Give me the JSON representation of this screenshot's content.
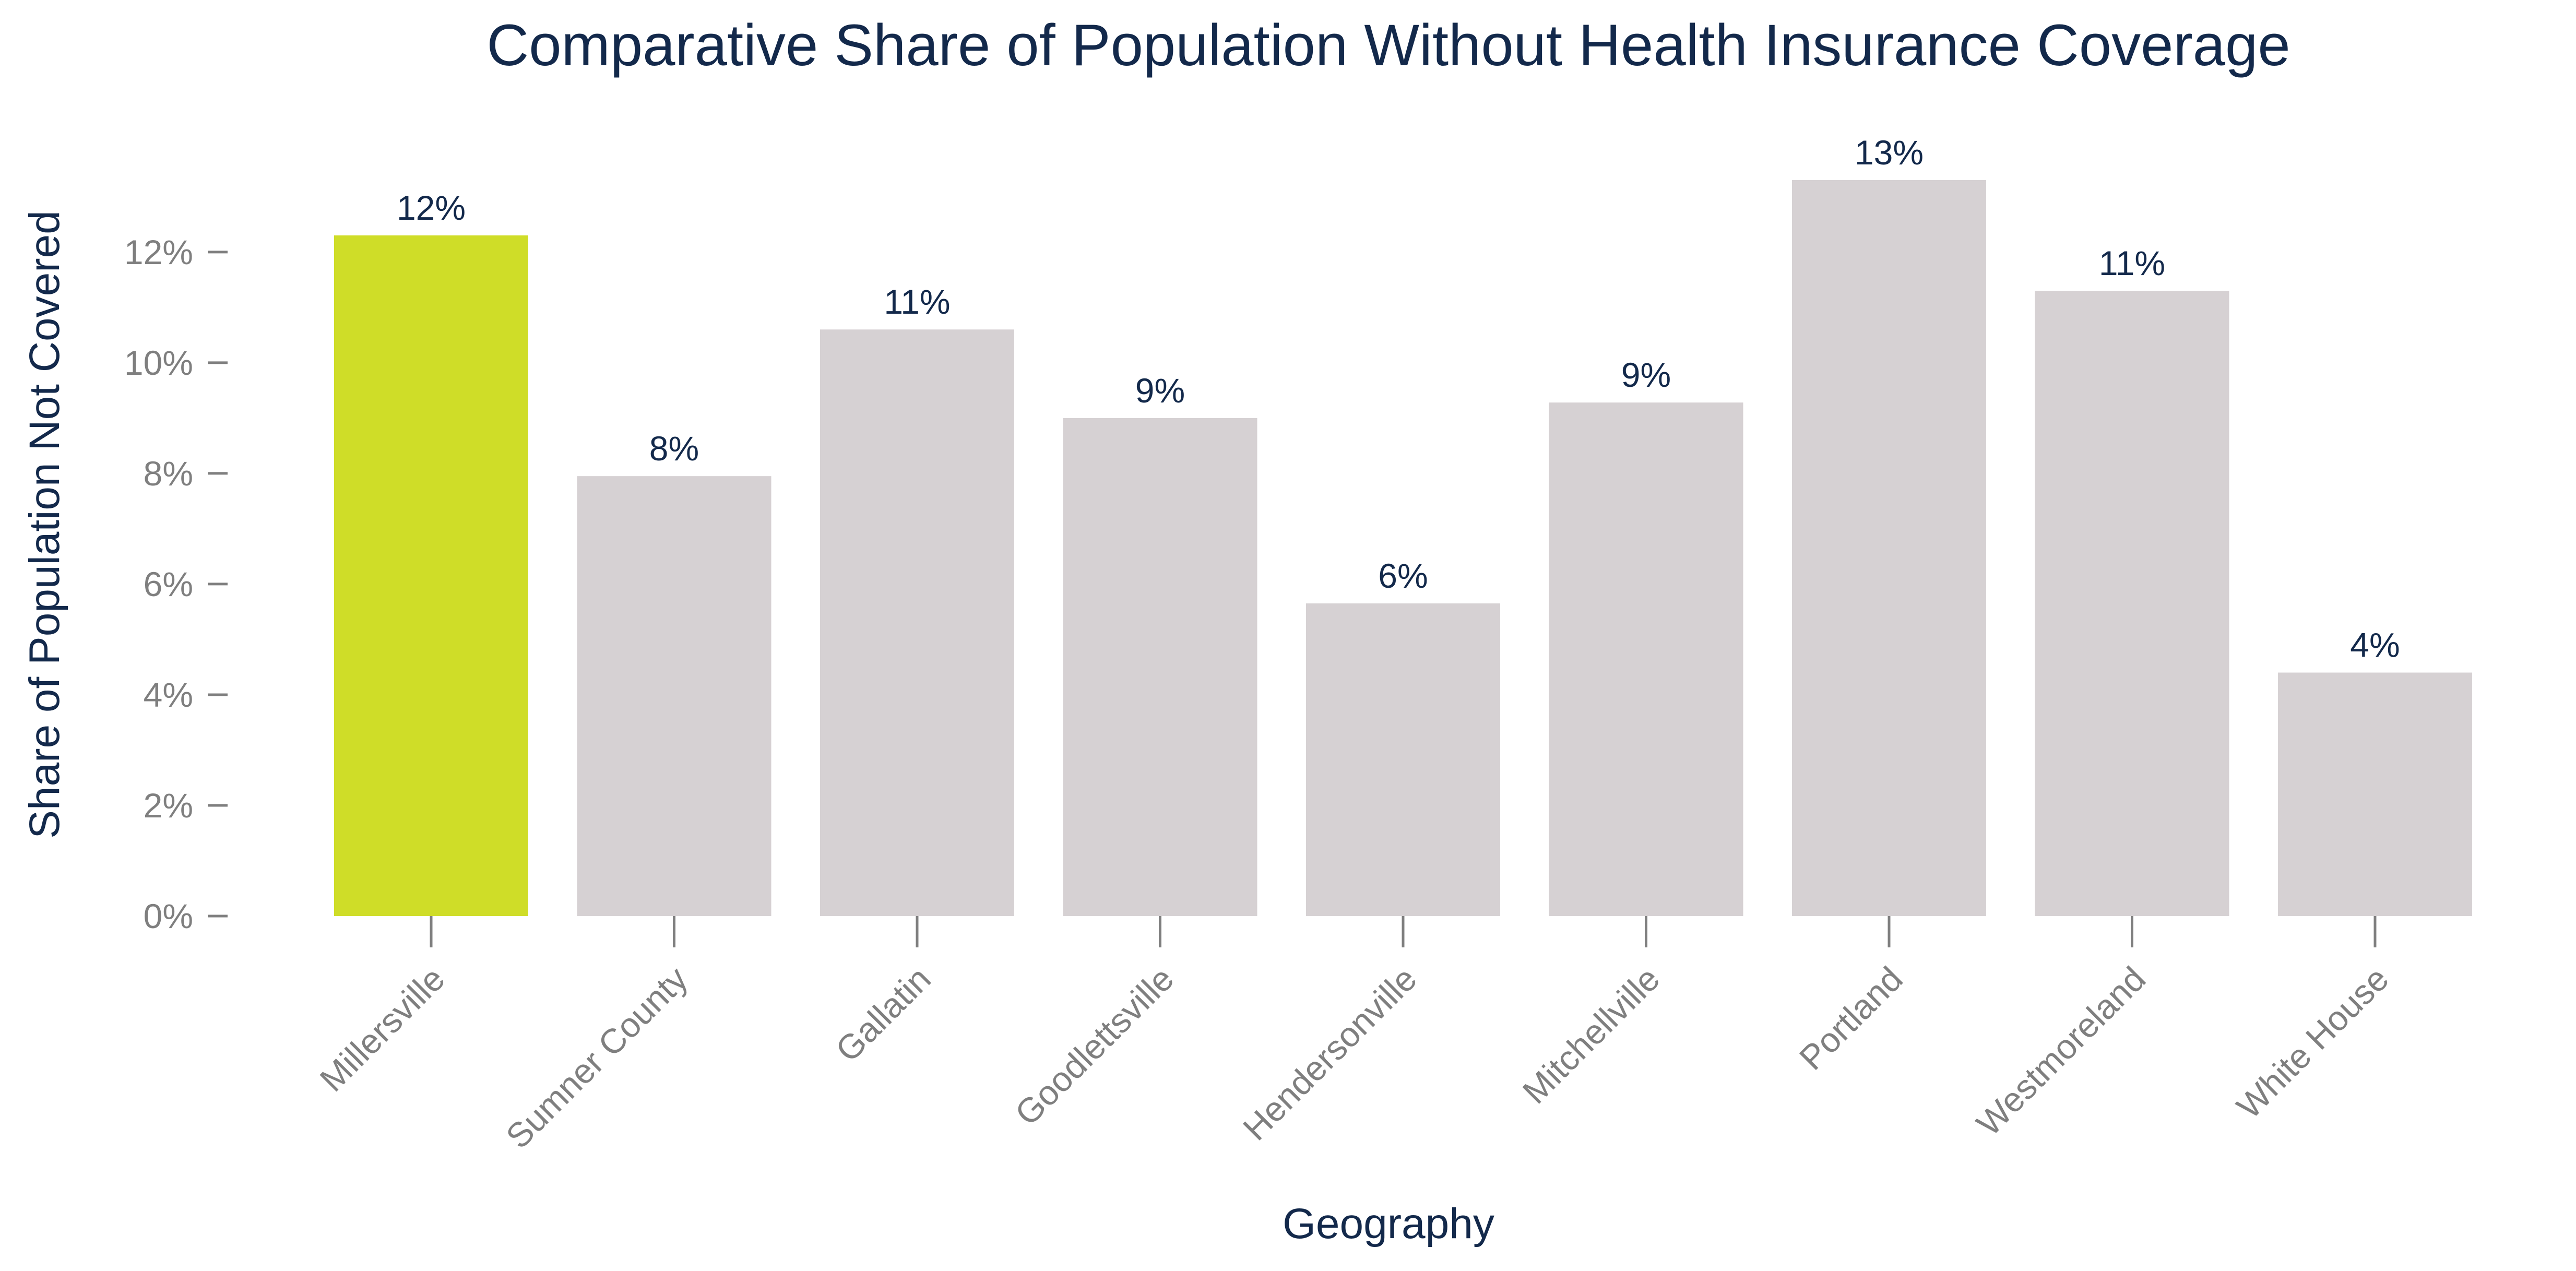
{
  "colors": {
    "highlight": "#cfdd28",
    "default_bar": "#d6d1d3",
    "title": "#13294b",
    "tick": "#7f7f7f"
  },
  "chart_data": {
    "type": "bar",
    "title": "Comparative Share of Population Without Health Insurance Coverage",
    "xlabel": "Geography",
    "ylabel": "Share of Population Not Covered",
    "categories": [
      "Millersville",
      "Sumner County",
      "Gallatin",
      "Goodlettsville",
      "Hendersonville",
      "Mitchellville",
      "Portland",
      "Westmoreland",
      "White House"
    ],
    "values": [
      12.3,
      7.95,
      10.6,
      9.0,
      5.65,
      9.28,
      13.3,
      11.3,
      4.4
    ],
    "data_labels": [
      "12%",
      "8%",
      "11%",
      "9%",
      "6%",
      "9%",
      "13%",
      "11%",
      "4%"
    ],
    "highlight_category": "Millersville",
    "ylim": [
      0,
      13.3
    ],
    "yticks": [
      0,
      2,
      4,
      6,
      8,
      10,
      12
    ],
    "ytick_labels": [
      "0%",
      "2%",
      "4%",
      "6%",
      "8%",
      "10%",
      "12%"
    ],
    "grid": false,
    "legend": "none"
  }
}
